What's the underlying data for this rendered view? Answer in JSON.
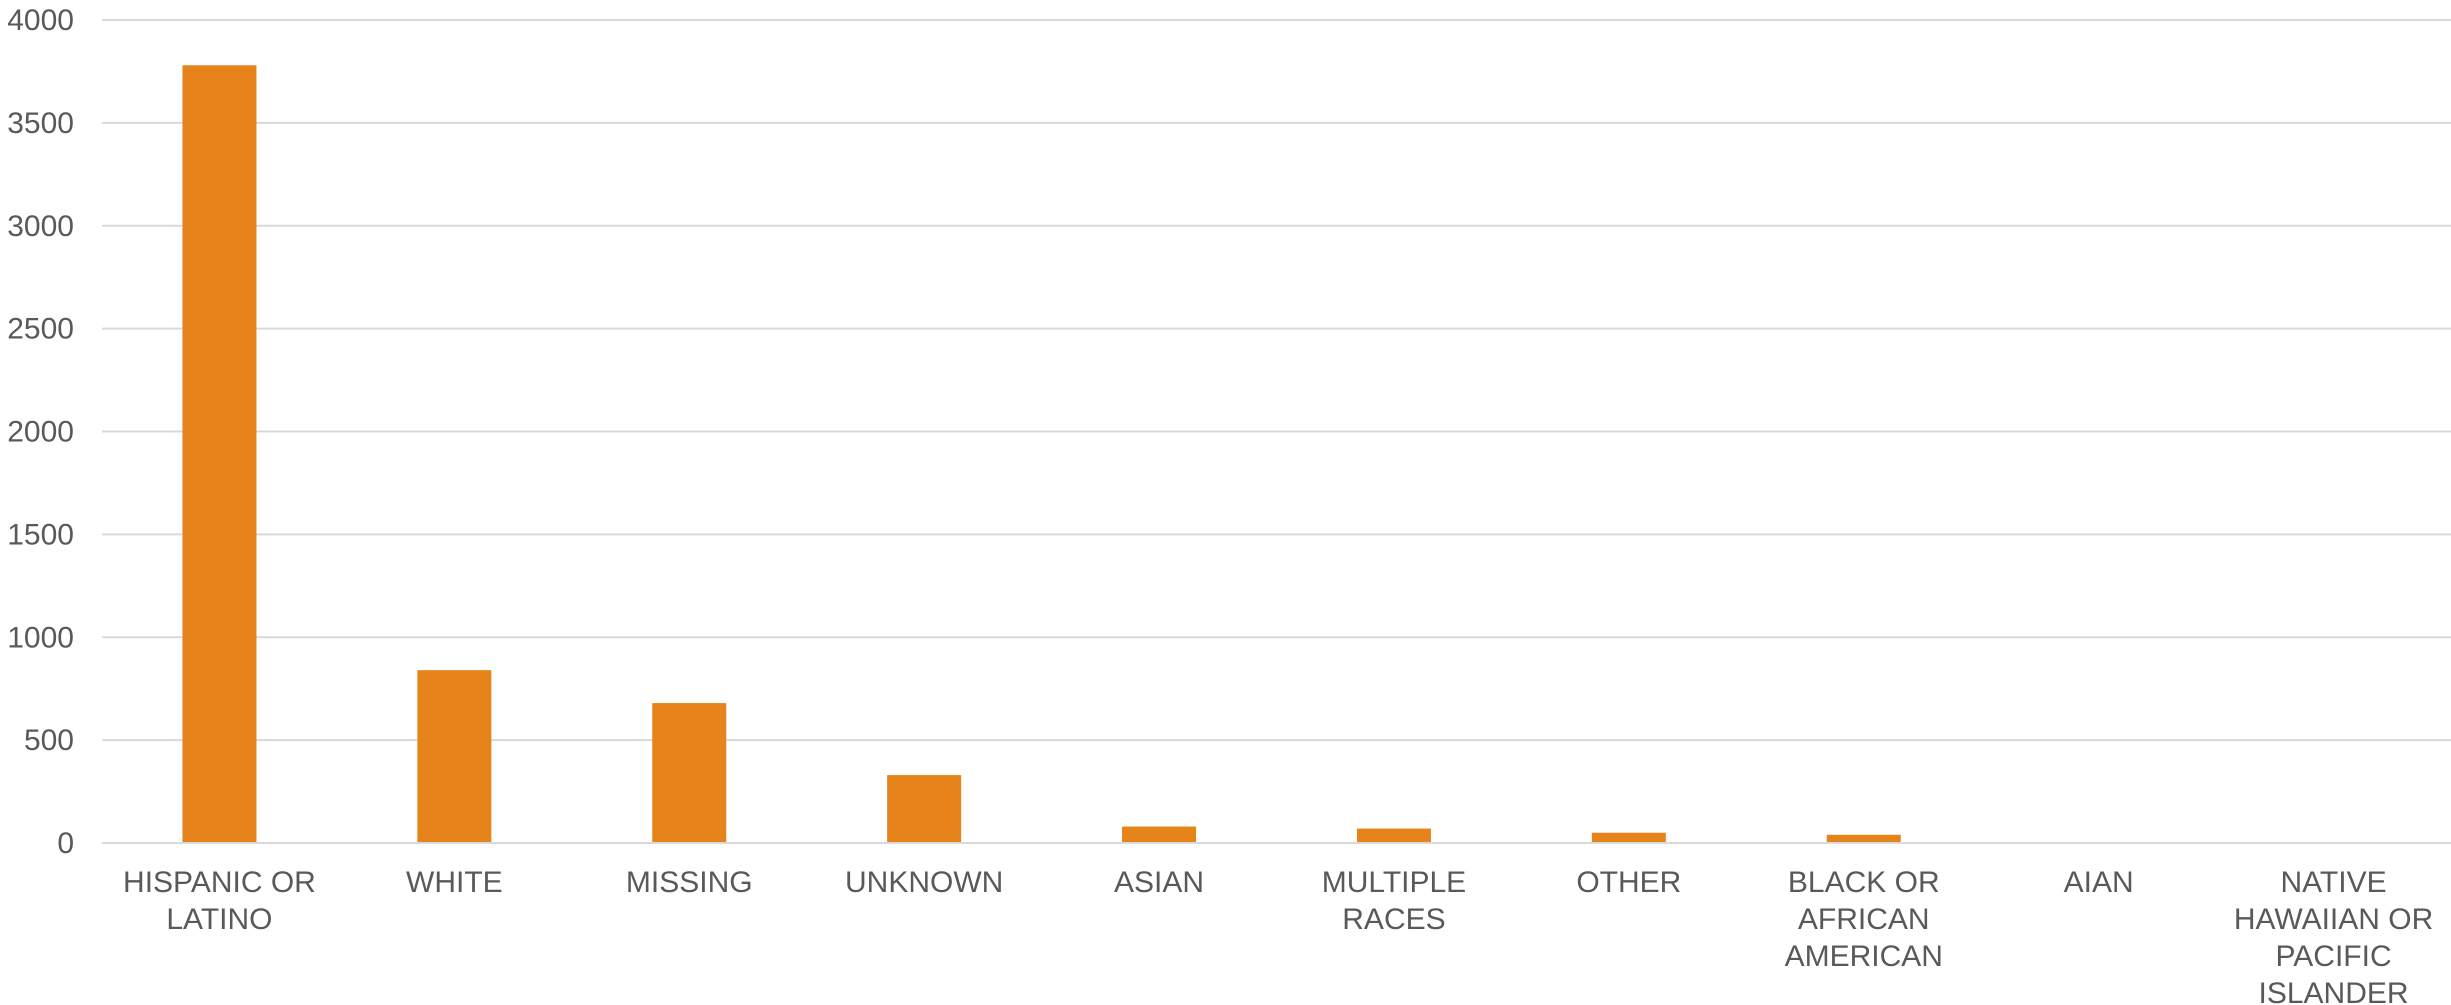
{
  "chart_data": {
    "type": "bar",
    "title": "",
    "xlabel": "",
    "ylabel": "",
    "categories": [
      "HISPANIC OR LATINO",
      "WHITE",
      "MISSING",
      "UNKNOWN",
      "ASIAN",
      "MULTIPLE RACES",
      "OTHER",
      "BLACK OR AFRICAN AMERICAN",
      "AIAN",
      "NATIVE HAWAIIAN OR PACIFIC ISLANDER"
    ],
    "category_lines": [
      [
        "HISPANIC OR",
        "LATINO"
      ],
      [
        "WHITE"
      ],
      [
        "MISSING"
      ],
      [
        "UNKNOWN"
      ],
      [
        "ASIAN"
      ],
      [
        "MULTIPLE",
        "RACES"
      ],
      [
        "OTHER"
      ],
      [
        "BLACK OR",
        "AFRICAN",
        "AMERICAN"
      ],
      [
        "AIAN"
      ],
      [
        "NATIVE",
        "HAWAIIAN OR",
        "PACIFIC",
        "ISLANDER"
      ]
    ],
    "values": [
      3780,
      840,
      680,
      330,
      80,
      70,
      50,
      40,
      5,
      3
    ],
    "ylim": [
      0,
      4000
    ],
    "yticks": [
      0,
      500,
      1000,
      1500,
      2000,
      2500,
      3000,
      3500,
      4000
    ],
    "grid": true,
    "legend": "none",
    "bar_color": "#E6831A",
    "grid_color": "#D9D9D9",
    "text_color": "#595959"
  }
}
